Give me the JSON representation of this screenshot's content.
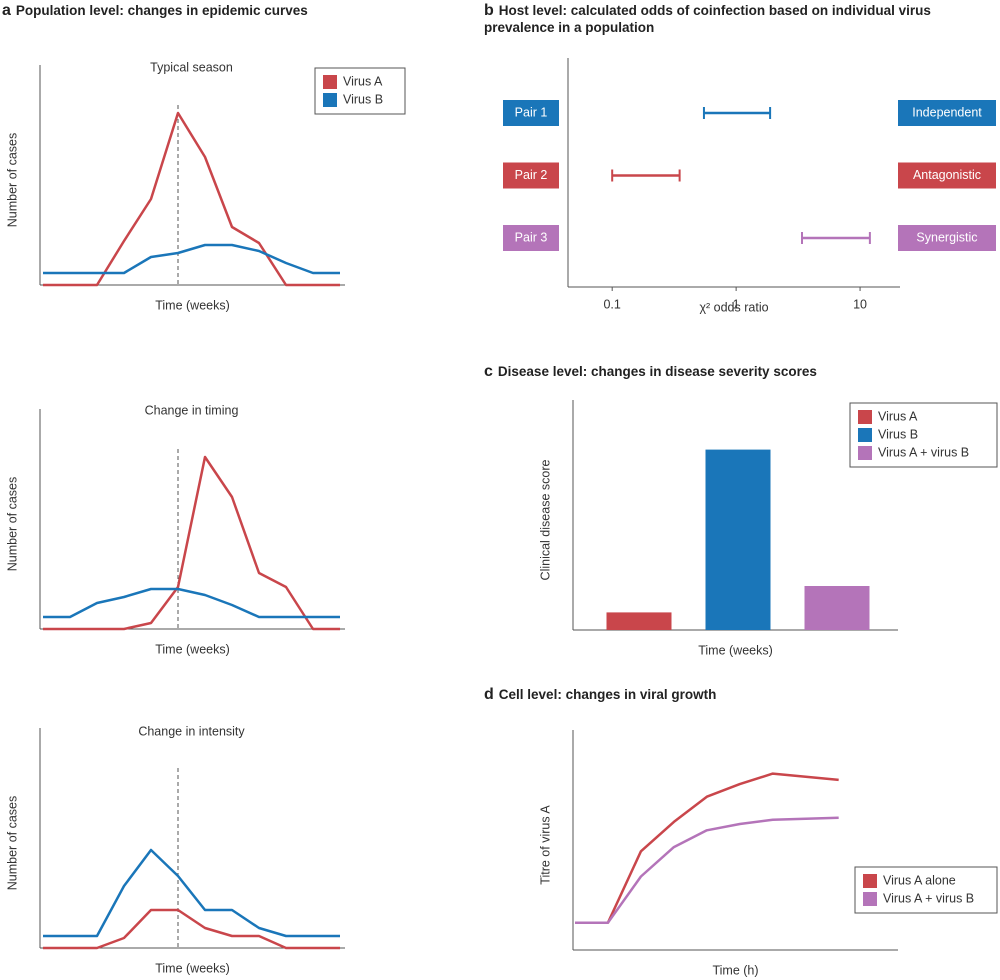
{
  "chart_data": [
    {
      "type": "line",
      "panel": "a",
      "heading": "Population level: changes in epidemic curves",
      "title": "Typical season",
      "xlabel": "Time (weeks)",
      "ylabel": "Number of cases",
      "x": [
        0,
        1,
        2,
        3,
        4,
        5,
        6,
        7,
        8,
        9,
        10,
        11
      ],
      "xlim": [
        0,
        11
      ],
      "ylim": [
        0,
        105
      ],
      "marker_x": 5,
      "legend": "upper right",
      "series": [
        {
          "name": "Virus A",
          "color": "#c9464b",
          "values": [
            0,
            0,
            0,
            22,
            43,
            86,
            64,
            29,
            21,
            0,
            0,
            0
          ]
        },
        {
          "name": "Virus B",
          "color": "#1a76b9",
          "values": [
            6,
            6,
            6,
            6,
            14,
            16,
            20,
            20,
            17,
            11,
            6,
            6
          ]
        }
      ]
    },
    {
      "type": "line",
      "title": "Change in timing",
      "xlabel": "Time (weeks)",
      "ylabel": "Number of cases",
      "x": [
        0,
        1,
        2,
        3,
        4,
        5,
        6,
        7,
        8,
        9,
        10,
        11
      ],
      "xlim": [
        0,
        11
      ],
      "ylim": [
        0,
        105
      ],
      "marker_x": 5,
      "series": [
        {
          "name": "Virus A",
          "color": "#c9464b",
          "values": [
            0,
            0,
            0,
            0,
            3,
            21,
            86,
            66,
            28,
            21,
            0,
            0
          ]
        },
        {
          "name": "Virus B",
          "color": "#1a76b9",
          "values": [
            6,
            6,
            13,
            16,
            20,
            20,
            17,
            12,
            6,
            6,
            6,
            6
          ]
        }
      ]
    },
    {
      "type": "line",
      "title": "Change in intensity",
      "xlabel": "Time (weeks)",
      "ylabel": "Number of cases",
      "x": [
        0,
        1,
        2,
        3,
        4,
        5,
        6,
        7,
        8,
        9,
        10,
        11
      ],
      "xlim": [
        0,
        11
      ],
      "ylim": [
        0,
        105
      ],
      "marker_x": 5,
      "series": [
        {
          "name": "Virus A",
          "color": "#c9464b",
          "values": [
            0,
            0,
            0,
            5,
            19,
            19,
            10,
            6,
            6,
            0,
            0,
            0
          ]
        },
        {
          "name": "Virus B",
          "color": "#1a76b9",
          "values": [
            6,
            6,
            6,
            31,
            49,
            36,
            19,
            19,
            10,
            6,
            6,
            6
          ]
        }
      ]
    },
    {
      "type": "interval",
      "panel": "b",
      "heading": "Host level: calculated odds of coinfection based on individual virus prevalence in a population",
      "categories": [
        "Pair 1",
        "Pair 2",
        "Pair 3"
      ],
      "effects": [
        "Independent",
        "Antagonistic",
        "Synergistic"
      ],
      "colors": [
        "#1a76b9",
        "#c9464b",
        "#b474b9"
      ],
      "low": [
        0.55,
        0.1,
        3.4
      ],
      "high": [
        1.88,
        0.35,
        12
      ],
      "xscale": "log",
      "xlim": [
        0.044,
        21
      ],
      "xticks": [
        {
          "value": 0.1,
          "label": "0.1"
        },
        1,
        10
      ],
      "xlabel": "χ² odds ratio"
    },
    {
      "type": "bar",
      "panel": "c",
      "heading": "Disease level: changes in disease severity scores",
      "categories": [
        "Virus A",
        "Virus B",
        "Virus A + virus B"
      ],
      "colors": [
        "#c9464b",
        "#1a76b9",
        "#b474b9"
      ],
      "values": [
        8,
        82,
        20
      ],
      "ylim": [
        0,
        100
      ],
      "xlabel": "Time (weeks)",
      "ylabel": "Clinical disease score",
      "legend": "upper right"
    },
    {
      "type": "line",
      "panel": "d",
      "heading": "Cell level: changes in viral growth",
      "xlabel": "Time (h)",
      "ylabel": "Titre of virus A",
      "x": [
        0,
        1,
        2,
        3,
        4,
        5,
        6,
        8
      ],
      "xlim": [
        0,
        9.8
      ],
      "ylim": [
        0,
        100
      ],
      "legend": "lower right",
      "series": [
        {
          "name": "Virus A alone",
          "color": "#c9464b",
          "values": [
            13,
            13,
            47,
            61,
            73,
            79,
            84,
            81
          ]
        },
        {
          "name": "Virus A + virus B",
          "color": "#b474b9",
          "values": [
            13,
            13,
            35,
            49,
            57,
            60,
            62,
            63
          ]
        }
      ]
    }
  ]
}
